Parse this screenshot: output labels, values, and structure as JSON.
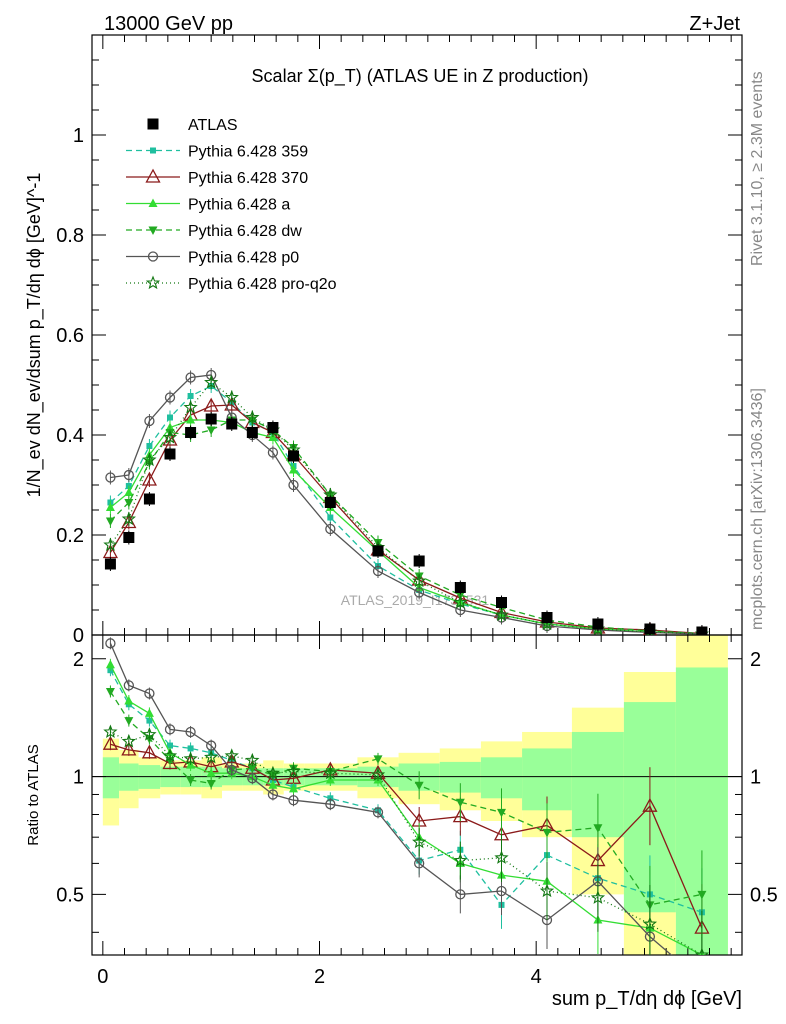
{
  "header": {
    "left": "13000 GeV pp",
    "right": "Z+Jet"
  },
  "side_labels": {
    "rivet": "Rivet 3.1.10, ≥ 2.3M events",
    "mcplots": "mcplots.cern.ch [arXiv:1306.3436]"
  },
  "watermark": "ATLAS_2019_I1736531",
  "chart_data": {
    "type": "scatter",
    "title": "Scalar Σ(p_T) (ATLAS UE in Z production)",
    "xlabel": "sum p_T/dη dϕ [GeV]",
    "ylabel": "1/N_ev dN_ev/dsum p_T/dη dϕ [GeV]^-1",
    "ratio_ylabel": "Ratio to ATLAS",
    "xlim": [
      -0.1,
      5.9
    ],
    "ylim": [
      0,
      1.2
    ],
    "ratio_ylim": [
      0.35,
      2.3
    ],
    "x_ticks": [
      0,
      2,
      4
    ],
    "y_ticks": [
      0,
      0.2,
      0.4,
      0.6,
      0.8,
      1
    ],
    "ratio_ticks": [
      0.5,
      1,
      2
    ],
    "legend_position": "top-left",
    "x": [
      0.07,
      0.24,
      0.43,
      0.62,
      0.81,
      1.0,
      1.19,
      1.38,
      1.57,
      1.76,
      2.1,
      2.54,
      2.92,
      3.3,
      3.68,
      4.1,
      4.57,
      5.05,
      5.53
    ],
    "bins": [
      0,
      0.15,
      0.33,
      0.53,
      0.72,
      0.91,
      1.1,
      1.29,
      1.48,
      1.67,
      1.86,
      2.35,
      2.73,
      3.11,
      3.49,
      3.87,
      4.33,
      4.81,
      5.29,
      5.77
    ],
    "band_inner": [
      0.12,
      0.08,
      0.07,
      0.06,
      0.06,
      0.06,
      0.05,
      0.05,
      0.05,
      0.05,
      0.05,
      0.06,
      0.08,
      0.09,
      0.12,
      0.18,
      0.3,
      0.55,
      0.9
    ],
    "band_outer": [
      0.25,
      0.17,
      0.12,
      0.1,
      0.1,
      0.12,
      0.08,
      0.08,
      0.1,
      0.08,
      0.08,
      0.12,
      0.15,
      0.18,
      0.23,
      0.3,
      0.5,
      0.85,
      1.3
    ],
    "series": [
      {
        "name": "ATLAS",
        "color": "#000000",
        "marker": "square",
        "dash": "none",
        "values": [
          0.142,
          0.195,
          0.272,
          0.362,
          0.405,
          0.432,
          0.422,
          0.405,
          0.415,
          0.358,
          0.265,
          0.168,
          0.148,
          0.095,
          0.065,
          0.035,
          0.022,
          0.012,
          0.006
        ],
        "ratio": []
      },
      {
        "name": "Pythia 6.428 359",
        "color": "#1fbf9f",
        "marker": "smallsquare",
        "dash": "6,4",
        "values": [
          0.265,
          0.298,
          0.378,
          0.435,
          0.478,
          0.498,
          0.465,
          0.425,
          0.405,
          0.338,
          0.235,
          0.138,
          0.09,
          0.062,
          0.04,
          0.022,
          0.012,
          0.006,
          0.003
        ],
        "ratio": [
          1.87,
          1.53,
          1.39,
          1.2,
          1.18,
          1.15,
          1.1,
          1.05,
          0.98,
          0.94,
          0.88,
          0.82,
          0.61,
          0.65,
          0.47,
          0.63,
          0.55,
          0.5,
          0.45
        ]
      },
      {
        "name": "Pythia 6.428 370",
        "color": "#8b1a1a",
        "marker": "triangle-open",
        "dash": "none",
        "values": [
          0.165,
          0.225,
          0.31,
          0.39,
          0.44,
          0.458,
          0.46,
          0.425,
          0.405,
          0.36,
          0.275,
          0.17,
          0.11,
          0.074,
          0.045,
          0.026,
          0.014,
          0.01,
          0.003
        ],
        "ratio": [
          1.21,
          1.17,
          1.15,
          1.08,
          1.09,
          1.06,
          1.09,
          1.05,
          0.98,
          0.99,
          1.04,
          1.02,
          0.77,
          0.79,
          0.71,
          0.75,
          0.61,
          0.84,
          0.41
        ]
      },
      {
        "name": "Pythia 6.428 a",
        "color": "#33dd33",
        "marker": "triangle",
        "dash": "none",
        "values": [
          0.255,
          0.285,
          0.36,
          0.415,
          0.43,
          0.43,
          0.425,
          0.405,
          0.395,
          0.33,
          0.255,
          0.168,
          0.095,
          0.065,
          0.04,
          0.022,
          0.012,
          0.006,
          0.002
        ],
        "ratio": [
          1.93,
          1.56,
          1.45,
          1.15,
          1.07,
          1.02,
          1.02,
          1.0,
          0.95,
          0.93,
          0.98,
          0.98,
          0.7,
          0.6,
          0.56,
          0.54,
          0.43,
          0.41,
          0.35
        ]
      },
      {
        "name": "Pythia 6.428 dw",
        "color": "#22aa22",
        "marker": "triangle-down",
        "dash": "6,4",
        "values": [
          0.228,
          0.265,
          0.345,
          0.405,
          0.4,
          0.41,
          0.43,
          0.43,
          0.41,
          0.375,
          0.28,
          0.185,
          0.118,
          0.08,
          0.055,
          0.03,
          0.016,
          0.008,
          0.003
        ],
        "ratio": [
          1.65,
          1.39,
          1.25,
          1.1,
          0.98,
          0.96,
          1.04,
          1.05,
          1.01,
          1.05,
          1.03,
          1.11,
          0.95,
          0.86,
          0.81,
          0.72,
          0.74,
          0.47,
          0.5
        ]
      },
      {
        "name": "Pythia 6.428 p0",
        "color": "#555555",
        "marker": "circle-open",
        "dash": "none",
        "values": [
          0.315,
          0.32,
          0.428,
          0.475,
          0.515,
          0.52,
          0.435,
          0.4,
          0.365,
          0.3,
          0.212,
          0.128,
          0.085,
          0.05,
          0.035,
          0.018,
          0.01,
          0.005,
          0.002
        ],
        "ratio": [
          2.19,
          1.71,
          1.63,
          1.32,
          1.3,
          1.2,
          1.04,
          0.99,
          0.9,
          0.87,
          0.85,
          0.81,
          0.6,
          0.5,
          0.51,
          0.43,
          0.54,
          0.39,
          0.3
        ]
      },
      {
        "name": "Pythia 6.428 pro-q2o",
        "color": "#117711",
        "marker": "star",
        "dash": "1,3",
        "values": [
          0.18,
          0.232,
          0.35,
          0.395,
          0.455,
          0.505,
          0.475,
          0.435,
          0.41,
          0.37,
          0.28,
          0.175,
          0.108,
          0.065,
          0.04,
          0.022,
          0.012,
          0.006,
          0.002
        ],
        "ratio": [
          1.3,
          1.23,
          1.28,
          1.13,
          1.11,
          1.12,
          1.13,
          1.1,
          1.02,
          1.03,
          1.02,
          1.01,
          0.68,
          0.61,
          0.62,
          0.51,
          0.49,
          0.42,
          0.35
        ]
      }
    ]
  }
}
